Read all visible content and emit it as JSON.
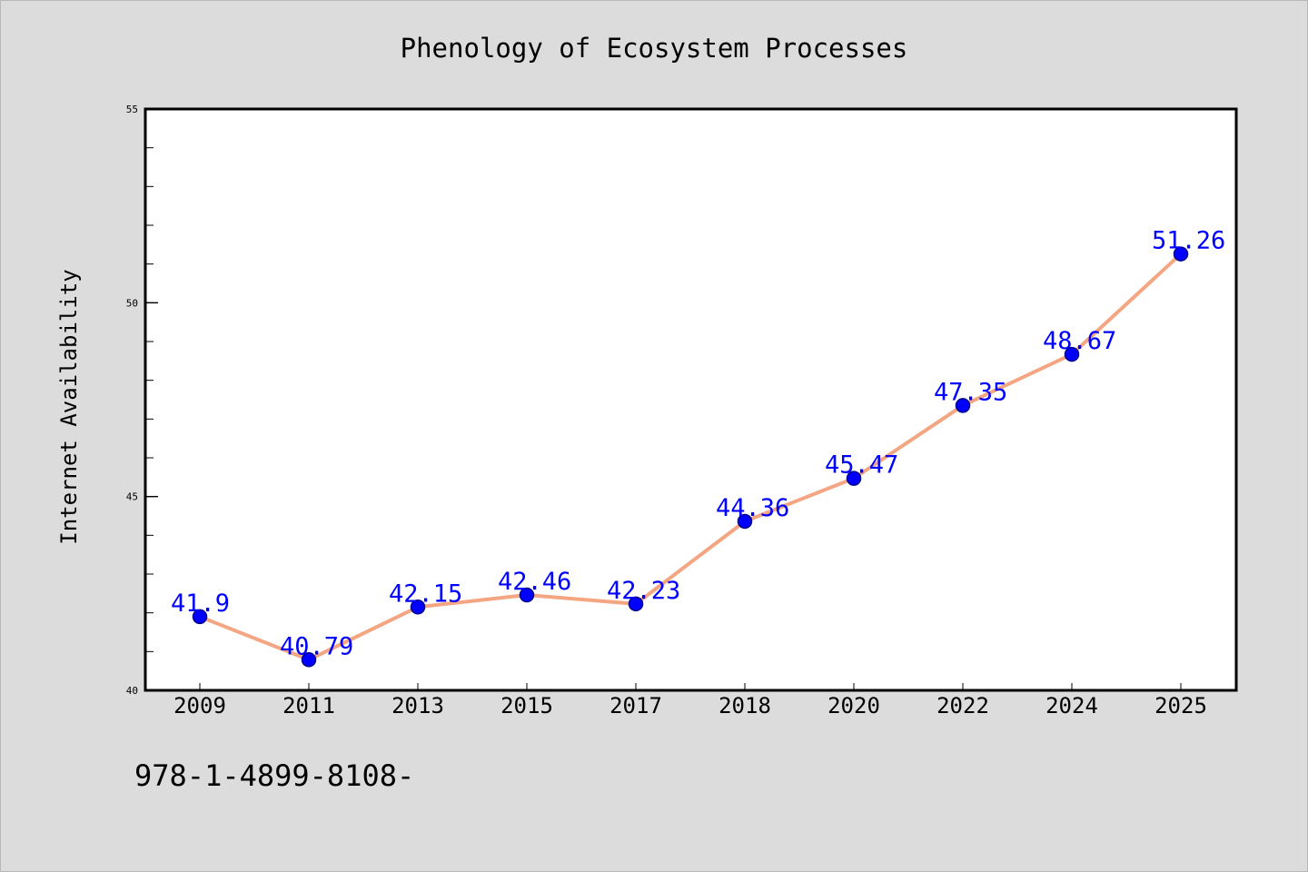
{
  "chart_data": {
    "type": "line",
    "title": "Phenology of Ecosystem Processes",
    "xlabel": "",
    "ylabel": "Internet Availability",
    "categories": [
      "2009",
      "2011",
      "2013",
      "2015",
      "2017",
      "2018",
      "2020",
      "2022",
      "2024",
      "2025"
    ],
    "series": [
      {
        "values": [
          41.9,
          40.79,
          42.15,
          42.46,
          42.23,
          44.36,
          45.47,
          47.35,
          48.67,
          51.26
        ],
        "data_labels": [
          "41.9",
          "40.79",
          "42.15",
          "42.46",
          "42.23",
          "44.36",
          "45.47",
          "47.35",
          "48.67",
          "51.26"
        ]
      }
    ],
    "ylim": [
      40,
      55
    ],
    "yticks": [
      "40",
      "45",
      "50",
      "55"
    ],
    "grid": false,
    "legend": "none",
    "colors": {
      "line": "#f4a582",
      "marker": "#0000ff",
      "marker_edge": "#00008b",
      "data_label": "#0000ff",
      "plot_bg": "#ffffff",
      "figure_bg": "#dcdcdc"
    }
  },
  "footer_text": "978-1-4899-8108-"
}
